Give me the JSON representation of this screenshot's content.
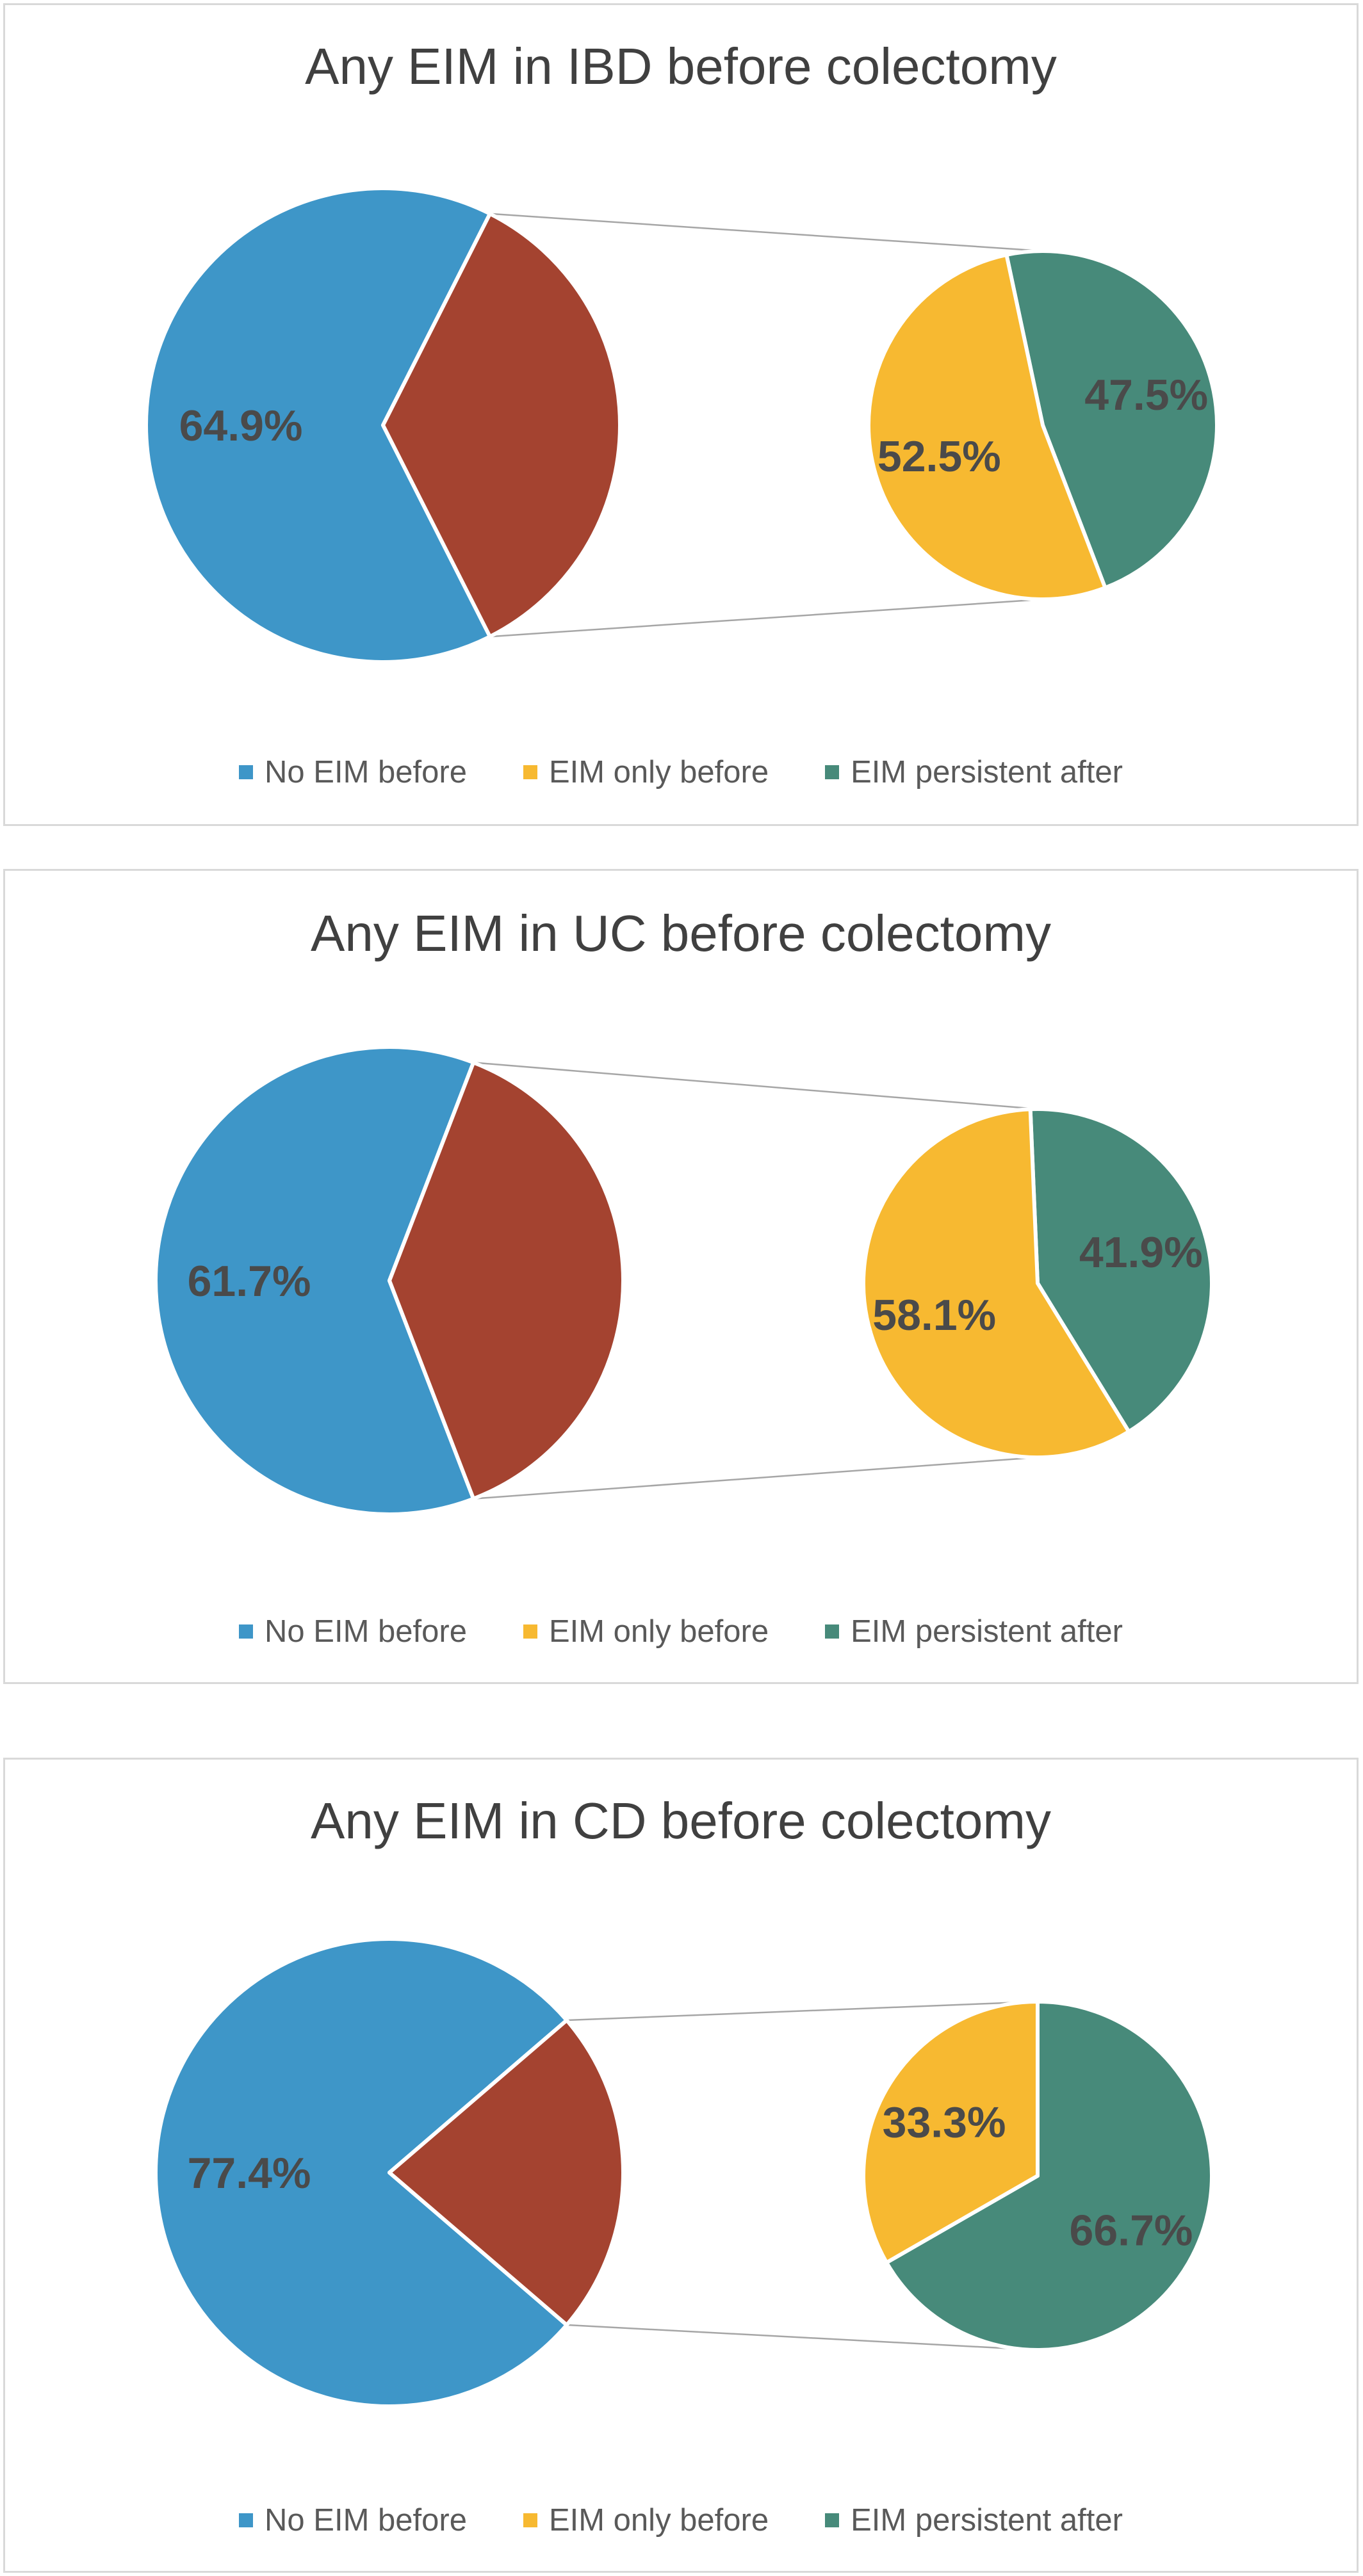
{
  "colors": {
    "no_eim_before": "#3e96c8",
    "eim_only_before": "#f7b931",
    "eim_persistent_after": "#478a7a",
    "any_eim": "#a44330",
    "label": "#4a4a4a",
    "connector": "#a6a6a6"
  },
  "legend": [
    {
      "label": "No EIM before",
      "color": "#3e96c8"
    },
    {
      "label": "EIM only before",
      "color": "#f7b931"
    },
    {
      "label": "EIM persistent after",
      "color": "#478a7a"
    }
  ],
  "chart_data": [
    {
      "type": "pie",
      "subtype": "pie-of-pie",
      "title": "Any EIM in IBD before colectomy",
      "main": {
        "slices": [
          {
            "name": "No EIM before",
            "value": 64.9,
            "label": "64.9%"
          },
          {
            "name": "",
            "value": 35.1,
            "label": ""
          }
        ]
      },
      "secondary": {
        "slices": [
          {
            "name": "EIM only before",
            "value": 52.5,
            "label": "52.5%"
          },
          {
            "name": "EIM persistent after",
            "value": 47.5,
            "label": "47.5%"
          }
        ]
      }
    },
    {
      "type": "pie",
      "subtype": "pie-of-pie",
      "title": "Any EIM in UC before colectomy",
      "main": {
        "slices": [
          {
            "name": "No EIM before",
            "value": 61.7,
            "label": "61.7%"
          },
          {
            "name": "",
            "value": 38.3,
            "label": ""
          }
        ]
      },
      "secondary": {
        "slices": [
          {
            "name": "EIM only before",
            "value": 58.1,
            "label": "58.1%"
          },
          {
            "name": "EIM persistent after",
            "value": 41.9,
            "label": "41.9%"
          }
        ]
      }
    },
    {
      "type": "pie",
      "subtype": "pie-of-pie",
      "title": "Any EIM in CD before colectomy",
      "main": {
        "slices": [
          {
            "name": "No EIM before",
            "value": 77.4,
            "label": "77.4%"
          },
          {
            "name": "",
            "value": 22.6,
            "label": ""
          }
        ]
      },
      "secondary": {
        "slices": [
          {
            "name": "EIM only before",
            "value": 33.3,
            "label": "33.3%"
          },
          {
            "name": "EIM persistent after",
            "value": 66.7,
            "label": "66.7%"
          }
        ]
      }
    }
  ]
}
